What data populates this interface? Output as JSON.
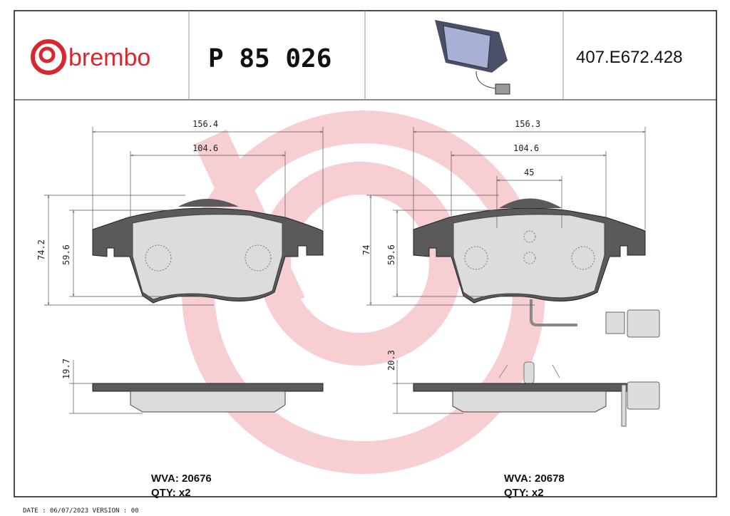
{
  "header": {
    "brand": "brembo",
    "part_number": "P 85 026",
    "reference": "407.E672.428"
  },
  "colors": {
    "brand_red": "#d7282f",
    "watermark": "#f7c9cc",
    "backplate": "#5a5a5a",
    "friction": "#dcdcdc"
  },
  "left_pad": {
    "width_overall": "156.4",
    "width_friction": "104.6",
    "height_overall": "74.2",
    "height_friction": "59.6",
    "thickness": "19.7",
    "wva": "WVA: 20676",
    "qty": "QTY: x2"
  },
  "right_pad": {
    "width_overall": "156.3",
    "width_friction": "104.6",
    "sensor_spacing": "45",
    "height_overall": "74",
    "height_friction": "59.6",
    "thickness": "20.3",
    "wva": "WVA: 20678",
    "qty": "QTY: x2"
  },
  "footer": {
    "date_version": "DATE : 06/07/2023 VERSION : 00"
  }
}
